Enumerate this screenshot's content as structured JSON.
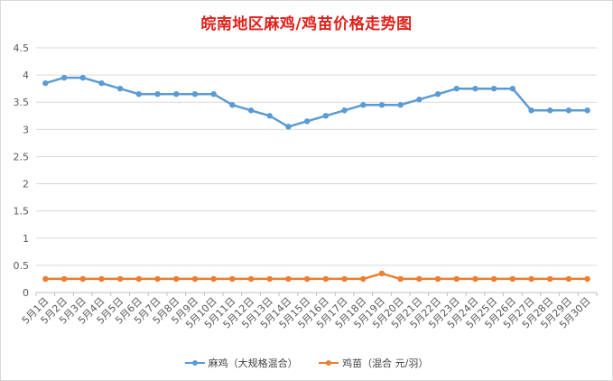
{
  "title": "皖南地区麻鸡/鸡苗价格走势图",
  "chart_data": {
    "type": "line",
    "title": "皖南地区麻鸡/鸡苗价格走势图",
    "categories": [
      "5月1日",
      "5月2日",
      "5月3日",
      "5月4日",
      "5月5日",
      "5月6日",
      "5月7日",
      "5月8日",
      "5月9日",
      "5月10日",
      "5月11日",
      "5月12日",
      "5月13日",
      "5月14日",
      "5月15日",
      "5月16日",
      "5月17日",
      "5月18日",
      "5月19日",
      "5月20日",
      "5月21日",
      "5月22日",
      "5月23日",
      "5月24日",
      "5月25日",
      "5月26日",
      "5月27日",
      "5月28日",
      "5月29日",
      "5月30日"
    ],
    "series": [
      {
        "name": "麻鸡（大规格混合）",
        "color": "#5b9bd5",
        "values": [
          3.85,
          3.95,
          3.95,
          3.85,
          3.75,
          3.65,
          3.65,
          3.65,
          3.65,
          3.65,
          3.45,
          3.35,
          3.25,
          3.05,
          3.15,
          3.25,
          3.35,
          3.45,
          3.45,
          3.45,
          3.55,
          3.65,
          3.75,
          3.75,
          3.75,
          3.75,
          3.35,
          3.35,
          3.35,
          3.35
        ]
      },
      {
        "name": "鸡苗（混合 元/羽）",
        "color": "#ed7d31",
        "values": [
          0.25,
          0.25,
          0.25,
          0.25,
          0.25,
          0.25,
          0.25,
          0.25,
          0.25,
          0.25,
          0.25,
          0.25,
          0.25,
          0.25,
          0.25,
          0.25,
          0.25,
          0.25,
          0.35,
          0.25,
          0.25,
          0.25,
          0.25,
          0.25,
          0.25,
          0.25,
          0.25,
          0.25,
          0.25,
          0.25
        ]
      }
    ],
    "yticks": [
      "0",
      "0.5",
      "1",
      "1.5",
      "2",
      "2.5",
      "3",
      "3.5",
      "4",
      "4.5"
    ],
    "ylim": [
      0,
      4.5
    ],
    "grid": true,
    "legend_position": "bottom"
  }
}
